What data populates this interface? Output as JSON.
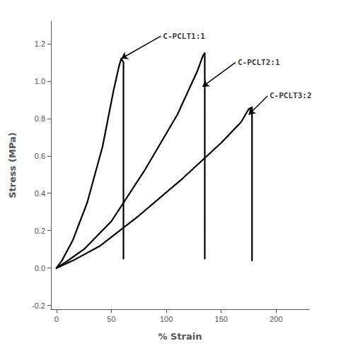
{
  "chart_data": {
    "type": "line",
    "xlabel": "% Strain",
    "ylabel": "Stress (MPa)",
    "xlim": [
      -5,
      230
    ],
    "ylim": [
      -0.22,
      1.32
    ],
    "xticks": [
      0,
      50,
      100,
      150,
      200
    ],
    "yticks": [
      -0.2,
      {
        "value": 0,
        "label": "0.0"
      },
      0.2,
      0.4,
      0.6,
      0.8,
      {
        "value": 1,
        "label": "1.0"
      },
      1.2
    ],
    "color": "#000000",
    "grid": false,
    "series": [
      {
        "x": [
          0,
          5,
          15,
          28,
          42,
          52,
          57,
          59,
          61,
          61,
          61
        ],
        "values": [
          0,
          0.04,
          0.15,
          0.35,
          0.65,
          0.95,
          1.08,
          1.12,
          1.1,
          0.85,
          0.05
        ]
      },
      {
        "x": [
          0,
          8,
          25,
          50,
          80,
          110,
          128,
          133,
          135,
          135,
          135
        ],
        "values": [
          0,
          0.03,
          0.1,
          0.25,
          0.52,
          0.82,
          1.05,
          1.13,
          1.15,
          0.95,
          0.05
        ]
      },
      {
        "x": [
          0,
          15,
          40,
          75,
          115,
          150,
          168,
          175,
          178,
          178,
          178
        ],
        "values": [
          0,
          0.04,
          0.12,
          0.28,
          0.48,
          0.67,
          0.78,
          0.85,
          0.86,
          0.62,
          0.04
        ]
      }
    ],
    "annotations": [
      {
        "text": "C-PCLT1:1",
        "xy": [
          59,
          1.12
        ],
        "xytext": [
          95,
          1.24
        ]
      },
      {
        "text": "C-PCLT2:1",
        "xy": [
          133,
          0.97
        ],
        "xytext": [
          163,
          1.1
        ]
      },
      {
        "text": "C-PCLT3:2",
        "xy": [
          175,
          0.82
        ],
        "xytext": [
          192,
          0.92
        ]
      }
    ]
  }
}
